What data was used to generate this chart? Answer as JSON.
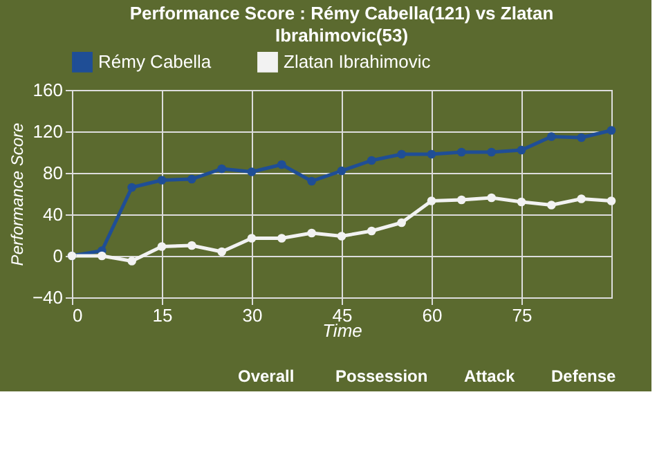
{
  "chart_data": {
    "type": "line",
    "title": "Performance Score : Rémy Cabella(121) vs Zlatan Ibrahimovic(53)",
    "xlabel": "Time",
    "ylabel": "Performance Score",
    "x": [
      0,
      5,
      10,
      15,
      20,
      25,
      30,
      35,
      40,
      45,
      50,
      55,
      60,
      65,
      70,
      75,
      80,
      85,
      90
    ],
    "series": [
      {
        "name": "Rémy Cabella",
        "color": "#1f4e96",
        "values": [
          0,
          5,
          66,
          73,
          74,
          84,
          81,
          88,
          72,
          82,
          92,
          98,
          98,
          100,
          100,
          102,
          115,
          114,
          121
        ]
      },
      {
        "name": "Zlatan Ibrahimovic",
        "color": "#f2f2f2",
        "values": [
          0,
          0,
          -5,
          9,
          10,
          4,
          17,
          17,
          22,
          19,
          24,
          32,
          53,
          54,
          56,
          52,
          49,
          55,
          53
        ]
      }
    ],
    "xlim": [
      0,
      90
    ],
    "xticks": [
      0,
      15,
      30,
      45,
      60,
      75
    ],
    "ylim": [
      -40,
      160
    ],
    "yticks": [
      -40,
      0,
      40,
      80,
      120,
      160
    ],
    "grid": true,
    "legend": "top",
    "marker": "circle",
    "line_style": "solid",
    "annotations": [
      "Overall",
      "Possession",
      "Attack",
      "Defense"
    ]
  }
}
